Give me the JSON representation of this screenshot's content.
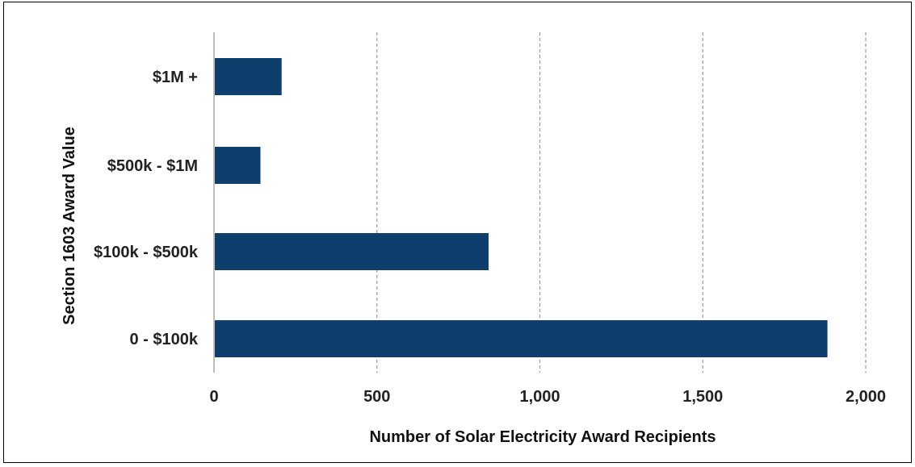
{
  "chart_data": {
    "type": "bar",
    "orientation": "horizontal",
    "categories": [
      "0 - $100k",
      "$100k - $500k",
      "$500k - $1M",
      "$1M +"
    ],
    "values": [
      1880,
      840,
      140,
      205
    ],
    "xlabel": "Number of Solar Electricity Award Recipients",
    "ylabel": "Section 1603 Award Value",
    "xlim": [
      0,
      2000
    ],
    "xticks": [
      0,
      500,
      1000,
      1500,
      2000
    ],
    "xtick_labels": [
      "0",
      "500",
      "1,000",
      "1,500",
      "2,000"
    ],
    "grid": "vertical dashed",
    "legend": "none",
    "colors": {
      "bar": "#0e3e6b",
      "grid": "#9a9a9a",
      "axis": "#bdbdbd"
    }
  }
}
